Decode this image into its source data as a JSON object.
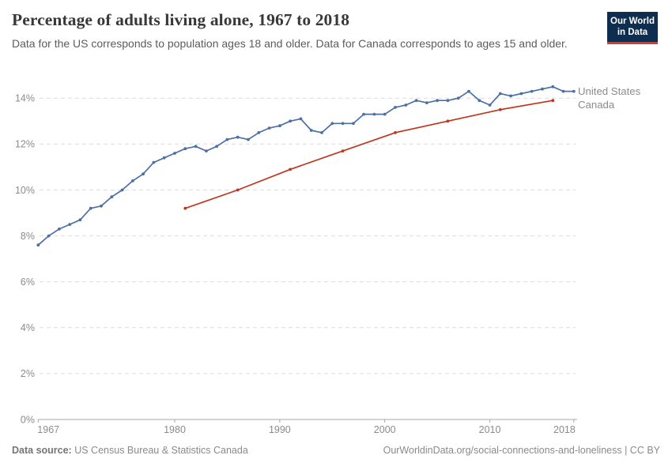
{
  "header": {
    "title": "Percentage of adults living alone, 1967 to 2018",
    "subtitle": "Data for the US corresponds to population ages 18 and older. Data for Canada corresponds to ages 15 and older.",
    "logo": {
      "line1": "Our World",
      "line2": "in Data",
      "bg_color": "#0F2E4F",
      "bar_color": "#DC3A22"
    }
  },
  "chart_data": {
    "type": "line",
    "title": "Percentage of adults living alone, 1967 to 2018",
    "xlabel": "",
    "ylabel": "",
    "x_ticks": [
      1967,
      1980,
      1990,
      2000,
      2010,
      2018
    ],
    "y_ticks": [
      0,
      2,
      4,
      6,
      8,
      10,
      12,
      14
    ],
    "y_tick_labels": [
      "0%",
      "2%",
      "4%",
      "6%",
      "8%",
      "10%",
      "12%",
      "14%"
    ],
    "xlim": [
      1967,
      2018
    ],
    "ylim": [
      0,
      14.85
    ],
    "grid": "horizontal dashed gridlines",
    "legend_position": "labels at right end of lines",
    "series": [
      {
        "name": "United States",
        "color": "#4C6FA5",
        "x": [
          1967,
          1968,
          1969,
          1970,
          1971,
          1972,
          1973,
          1974,
          1975,
          1976,
          1977,
          1978,
          1979,
          1980,
          1981,
          1982,
          1983,
          1984,
          1985,
          1986,
          1987,
          1988,
          1989,
          1990,
          1991,
          1992,
          1993,
          1994,
          1995,
          1996,
          1997,
          1998,
          1999,
          2000,
          2001,
          2002,
          2003,
          2004,
          2005,
          2006,
          2007,
          2008,
          2009,
          2010,
          2011,
          2012,
          2013,
          2014,
          2015,
          2016,
          2017,
          2018
        ],
        "values": [
          7.6,
          8.0,
          8.3,
          8.5,
          8.7,
          9.2,
          9.3,
          9.7,
          10.0,
          10.4,
          10.7,
          11.2,
          11.4,
          11.6,
          11.8,
          11.9,
          11.7,
          11.9,
          12.2,
          12.3,
          12.2,
          12.5,
          12.7,
          12.8,
          13.0,
          13.1,
          12.6,
          12.5,
          12.9,
          12.9,
          12.9,
          13.3,
          13.3,
          13.3,
          13.6,
          13.7,
          13.9,
          13.8,
          13.9,
          13.9,
          14.0,
          14.3,
          13.9,
          13.7,
          14.2,
          14.1,
          14.2,
          14.3,
          14.4,
          14.5,
          14.3,
          14.3
        ]
      },
      {
        "name": "Canada",
        "color": "#C0371D",
        "x": [
          1981,
          1986,
          1991,
          1996,
          2001,
          2006,
          2011,
          2016
        ],
        "values": [
          9.2,
          10.0,
          10.9,
          11.7,
          12.5,
          13.0,
          13.5,
          13.9
        ]
      }
    ]
  },
  "footer": {
    "source_label": "Data source:",
    "source_text": "US Census Bureau & Statistics Canada",
    "credit": "OurWorldinData.org/social-connections-and-loneliness | CC BY"
  }
}
